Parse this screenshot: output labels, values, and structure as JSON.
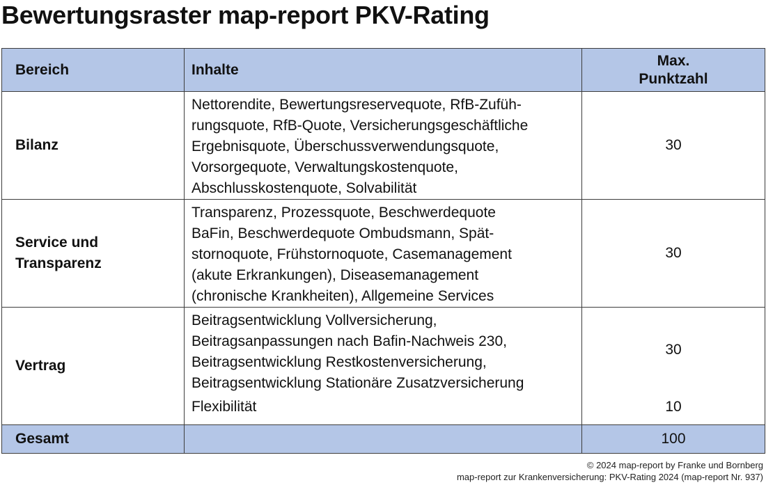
{
  "title": "Bewertungsraster map-report PKV-Rating",
  "table": {
    "headers": {
      "area": "Bereich",
      "content": "Inhalte",
      "points_line1": "Max.",
      "points_line2": "Punktzahl"
    },
    "rows": [
      {
        "area": "Bilanz",
        "content_lines": [
          "Nettorendite, Bewertungsreservequote, RfB-Zufüh-",
          "rungsquote, RfB-Quote, Versicherungsgeschäftliche",
          "Ergebnisquote, Überschussverwendungsquote,",
          "Vorsorgequote, Verwaltungskostenquote,",
          "Abschlusskostenquote, Solvabilität"
        ],
        "points": "30"
      },
      {
        "area_line1": "Service und",
        "area_line2": "Transparenz",
        "content_lines": [
          "Transparenz, Prozessquote, Beschwerdequote",
          "BaFin, Beschwerdequote Ombudsmann, Spät-",
          "stornoquote, Frühstornoquote, Casemanagement",
          "(akute Erkrankungen), Diseasemanagement",
          "(chronische Krankheiten), Allgemeine Services"
        ],
        "points": "30"
      },
      {
        "area": "Vertrag",
        "content_lines": [
          "Beitragsentwicklung Vollversicherung,",
          "Beitragsanpassungen nach Bafin-Nachweis 230,",
          "Beitragsentwicklung Restkostenversicherung,",
          "Beitragsentwicklung Stationäre Zusatzversicherung"
        ],
        "points": "30",
        "sub_content": "Flexibilität",
        "sub_points": "10"
      }
    ],
    "total": {
      "area": "Gesamt",
      "content": "",
      "points": "100"
    }
  },
  "footer": {
    "line1": "© 2024 map-report by Franke und Bornberg",
    "line2": "map-report zur Krankenversicherung: PKV-Rating 2024 (map-report Nr. 937)"
  },
  "colors": {
    "header_background": "#b4c6e7",
    "border": "#3c3c3c"
  }
}
